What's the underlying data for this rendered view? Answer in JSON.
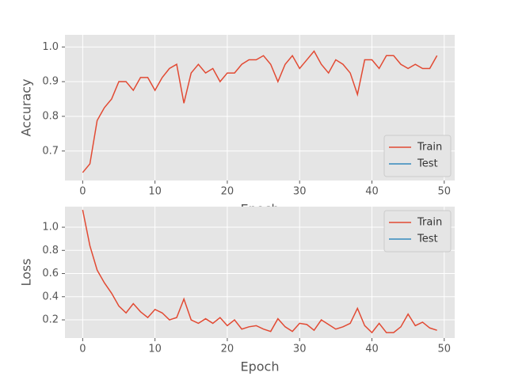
{
  "chart_data": [
    {
      "type": "line",
      "xlabel": "Epoch",
      "ylabel": "Accuracy",
      "x": [
        0,
        1,
        2,
        3,
        4,
        5,
        6,
        7,
        8,
        9,
        10,
        11,
        12,
        13,
        14,
        15,
        16,
        17,
        18,
        19,
        20,
        21,
        22,
        23,
        24,
        25,
        26,
        27,
        28,
        29,
        30,
        31,
        32,
        33,
        34,
        35,
        36,
        37,
        38,
        39,
        40,
        41,
        42,
        43,
        44,
        45,
        46,
        47,
        48,
        49
      ],
      "series": [
        {
          "name": "Train",
          "color": "#E24A33",
          "values": [
            0.638,
            0.663,
            0.788,
            0.825,
            0.85,
            0.9,
            0.9,
            0.875,
            0.912,
            0.912,
            0.875,
            0.912,
            0.938,
            0.95,
            0.838,
            0.925,
            0.95,
            0.925,
            0.938,
            0.9,
            0.925,
            0.925,
            0.95,
            0.963,
            0.963,
            0.975,
            0.95,
            0.9,
            0.95,
            0.975,
            0.938,
            0.963,
            0.988,
            0.95,
            0.925,
            0.963,
            0.95,
            0.925,
            0.863,
            0.963,
            0.963,
            0.938,
            0.975,
            0.975,
            0.95,
            0.938,
            0.95,
            0.938,
            0.938,
            0.975
          ]
        },
        {
          "name": "Test",
          "color": "#348ABD",
          "values": [
            null,
            null,
            null,
            null,
            null,
            null,
            null,
            null,
            null,
            null,
            null,
            null,
            null,
            null,
            null,
            null,
            null,
            null,
            null,
            null,
            null,
            null,
            null,
            null,
            null,
            null,
            null,
            null,
            null,
            null,
            null,
            null,
            null,
            null,
            null,
            null,
            null,
            null,
            null,
            null,
            null,
            null,
            null,
            null,
            null,
            null,
            null,
            null,
            null,
            null
          ]
        }
      ],
      "xlim": [
        -2.45,
        51.45
      ],
      "xticks": [
        0,
        10,
        20,
        30,
        40,
        50
      ],
      "ylim": [
        0.615,
        1.035
      ],
      "yticks": [
        0.7,
        0.8,
        0.9,
        {
          "value": 1.0,
          "label": "1.0"
        }
      ],
      "grid": true,
      "legend": "lower right"
    },
    {
      "type": "line",
      "xlabel": "Epoch",
      "ylabel": "Loss",
      "x": [
        0,
        1,
        2,
        3,
        4,
        5,
        6,
        7,
        8,
        9,
        10,
        11,
        12,
        13,
        14,
        15,
        16,
        17,
        18,
        19,
        20,
        21,
        22,
        23,
        24,
        25,
        26,
        27,
        28,
        29,
        30,
        31,
        32,
        33,
        34,
        35,
        36,
        37,
        38,
        39,
        40,
        41,
        42,
        43,
        44,
        45,
        46,
        47,
        48,
        49
      ],
      "series": [
        {
          "name": "Train",
          "color": "#E24A33",
          "values": [
            1.15,
            0.84,
            0.63,
            0.52,
            0.43,
            0.32,
            0.26,
            0.34,
            0.27,
            0.22,
            0.29,
            0.26,
            0.2,
            0.22,
            0.38,
            0.2,
            0.17,
            0.21,
            0.17,
            0.22,
            0.15,
            0.2,
            0.12,
            0.14,
            0.15,
            0.12,
            0.1,
            0.21,
            0.14,
            0.1,
            0.17,
            0.16,
            0.11,
            0.2,
            0.16,
            0.12,
            0.14,
            0.17,
            0.3,
            0.15,
            0.09,
            0.17,
            0.09,
            0.09,
            0.14,
            0.25,
            0.15,
            0.18,
            0.13,
            0.11
          ]
        },
        {
          "name": "Test",
          "color": "#348ABD",
          "values": [
            null,
            null,
            null,
            null,
            null,
            null,
            null,
            null,
            null,
            null,
            null,
            null,
            null,
            null,
            null,
            null,
            null,
            null,
            null,
            null,
            null,
            null,
            null,
            null,
            null,
            null,
            null,
            null,
            null,
            null,
            null,
            null,
            null,
            null,
            null,
            null,
            null,
            null,
            null,
            null,
            null,
            null,
            null,
            null,
            null,
            null,
            null,
            null,
            null,
            null
          ]
        }
      ],
      "xlim": [
        -2.45,
        51.45
      ],
      "xticks": [
        0,
        10,
        20,
        30,
        40,
        50
      ],
      "ylim": [
        0.043,
        1.178
      ],
      "yticks": [
        0.2,
        0.4,
        0.6,
        0.8,
        {
          "value": 1.0,
          "label": "1.0"
        }
      ],
      "grid": true,
      "legend": "upper right"
    }
  ]
}
